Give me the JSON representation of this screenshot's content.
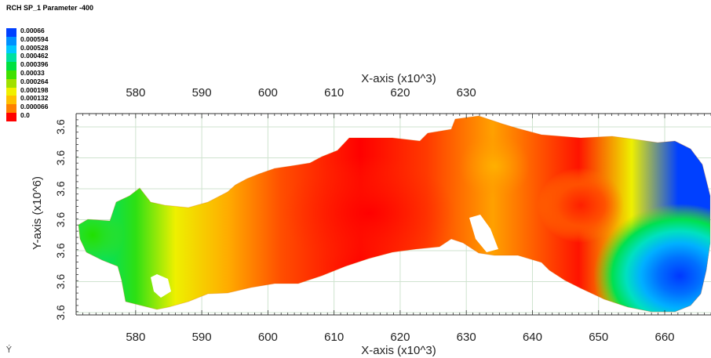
{
  "chart_data": {
    "type": "heatmap",
    "title": "RCH SP_1 Parameter -400",
    "xlabel_top": "X-axis (x10^3)",
    "xlabel_bottom": "X-axis (x10^3)",
    "ylabel": "Y-axis (x10^6)",
    "xlim": [
      571,
      667
    ],
    "x_ticks_top": [
      580,
      590,
      600,
      610,
      620,
      630
    ],
    "x_ticks_bottom": [
      580,
      590,
      600,
      610,
      620,
      630,
      640,
      650,
      660
    ],
    "y_tick_labels": [
      "3.6",
      "3.6",
      "3.6",
      "3.6",
      "3.6",
      "3.6",
      "3.6"
    ],
    "grid": true,
    "legend_position": "top-left",
    "colorbar": {
      "labels": [
        "0.00066",
        "0.000594",
        "0.000528",
        "0.000462",
        "0.000396",
        "0.00033",
        "0.000264",
        "0.000198",
        "0.000132",
        "0.000066",
        "0.0"
      ],
      "colors": [
        "#0040ff",
        "#0090ff",
        "#00c8ff",
        "#00e0a0",
        "#00e040",
        "#40e000",
        "#a0e000",
        "#f0f000",
        "#ffc000",
        "#ff8000",
        "#ff0000"
      ]
    },
    "zones": [
      {
        "x": 575,
        "value": 0.00042
      },
      {
        "x": 580,
        "value": 0.00035
      },
      {
        "x": 586,
        "value": 0.0002
      },
      {
        "x": 594,
        "value": 0.00011
      },
      {
        "x": 602,
        "value": 4e-05
      },
      {
        "x": 614,
        "value": 0.0
      },
      {
        "x": 624,
        "value": 3e-05
      },
      {
        "x": 634,
        "value": 0.0001
      },
      {
        "x": 647,
        "value": 1e-05
      },
      {
        "x": 655,
        "value": 0.0002
      },
      {
        "x": 662,
        "value": 0.00066
      }
    ]
  },
  "ui": {
    "axis_icon": "axis-triad-icon"
  }
}
